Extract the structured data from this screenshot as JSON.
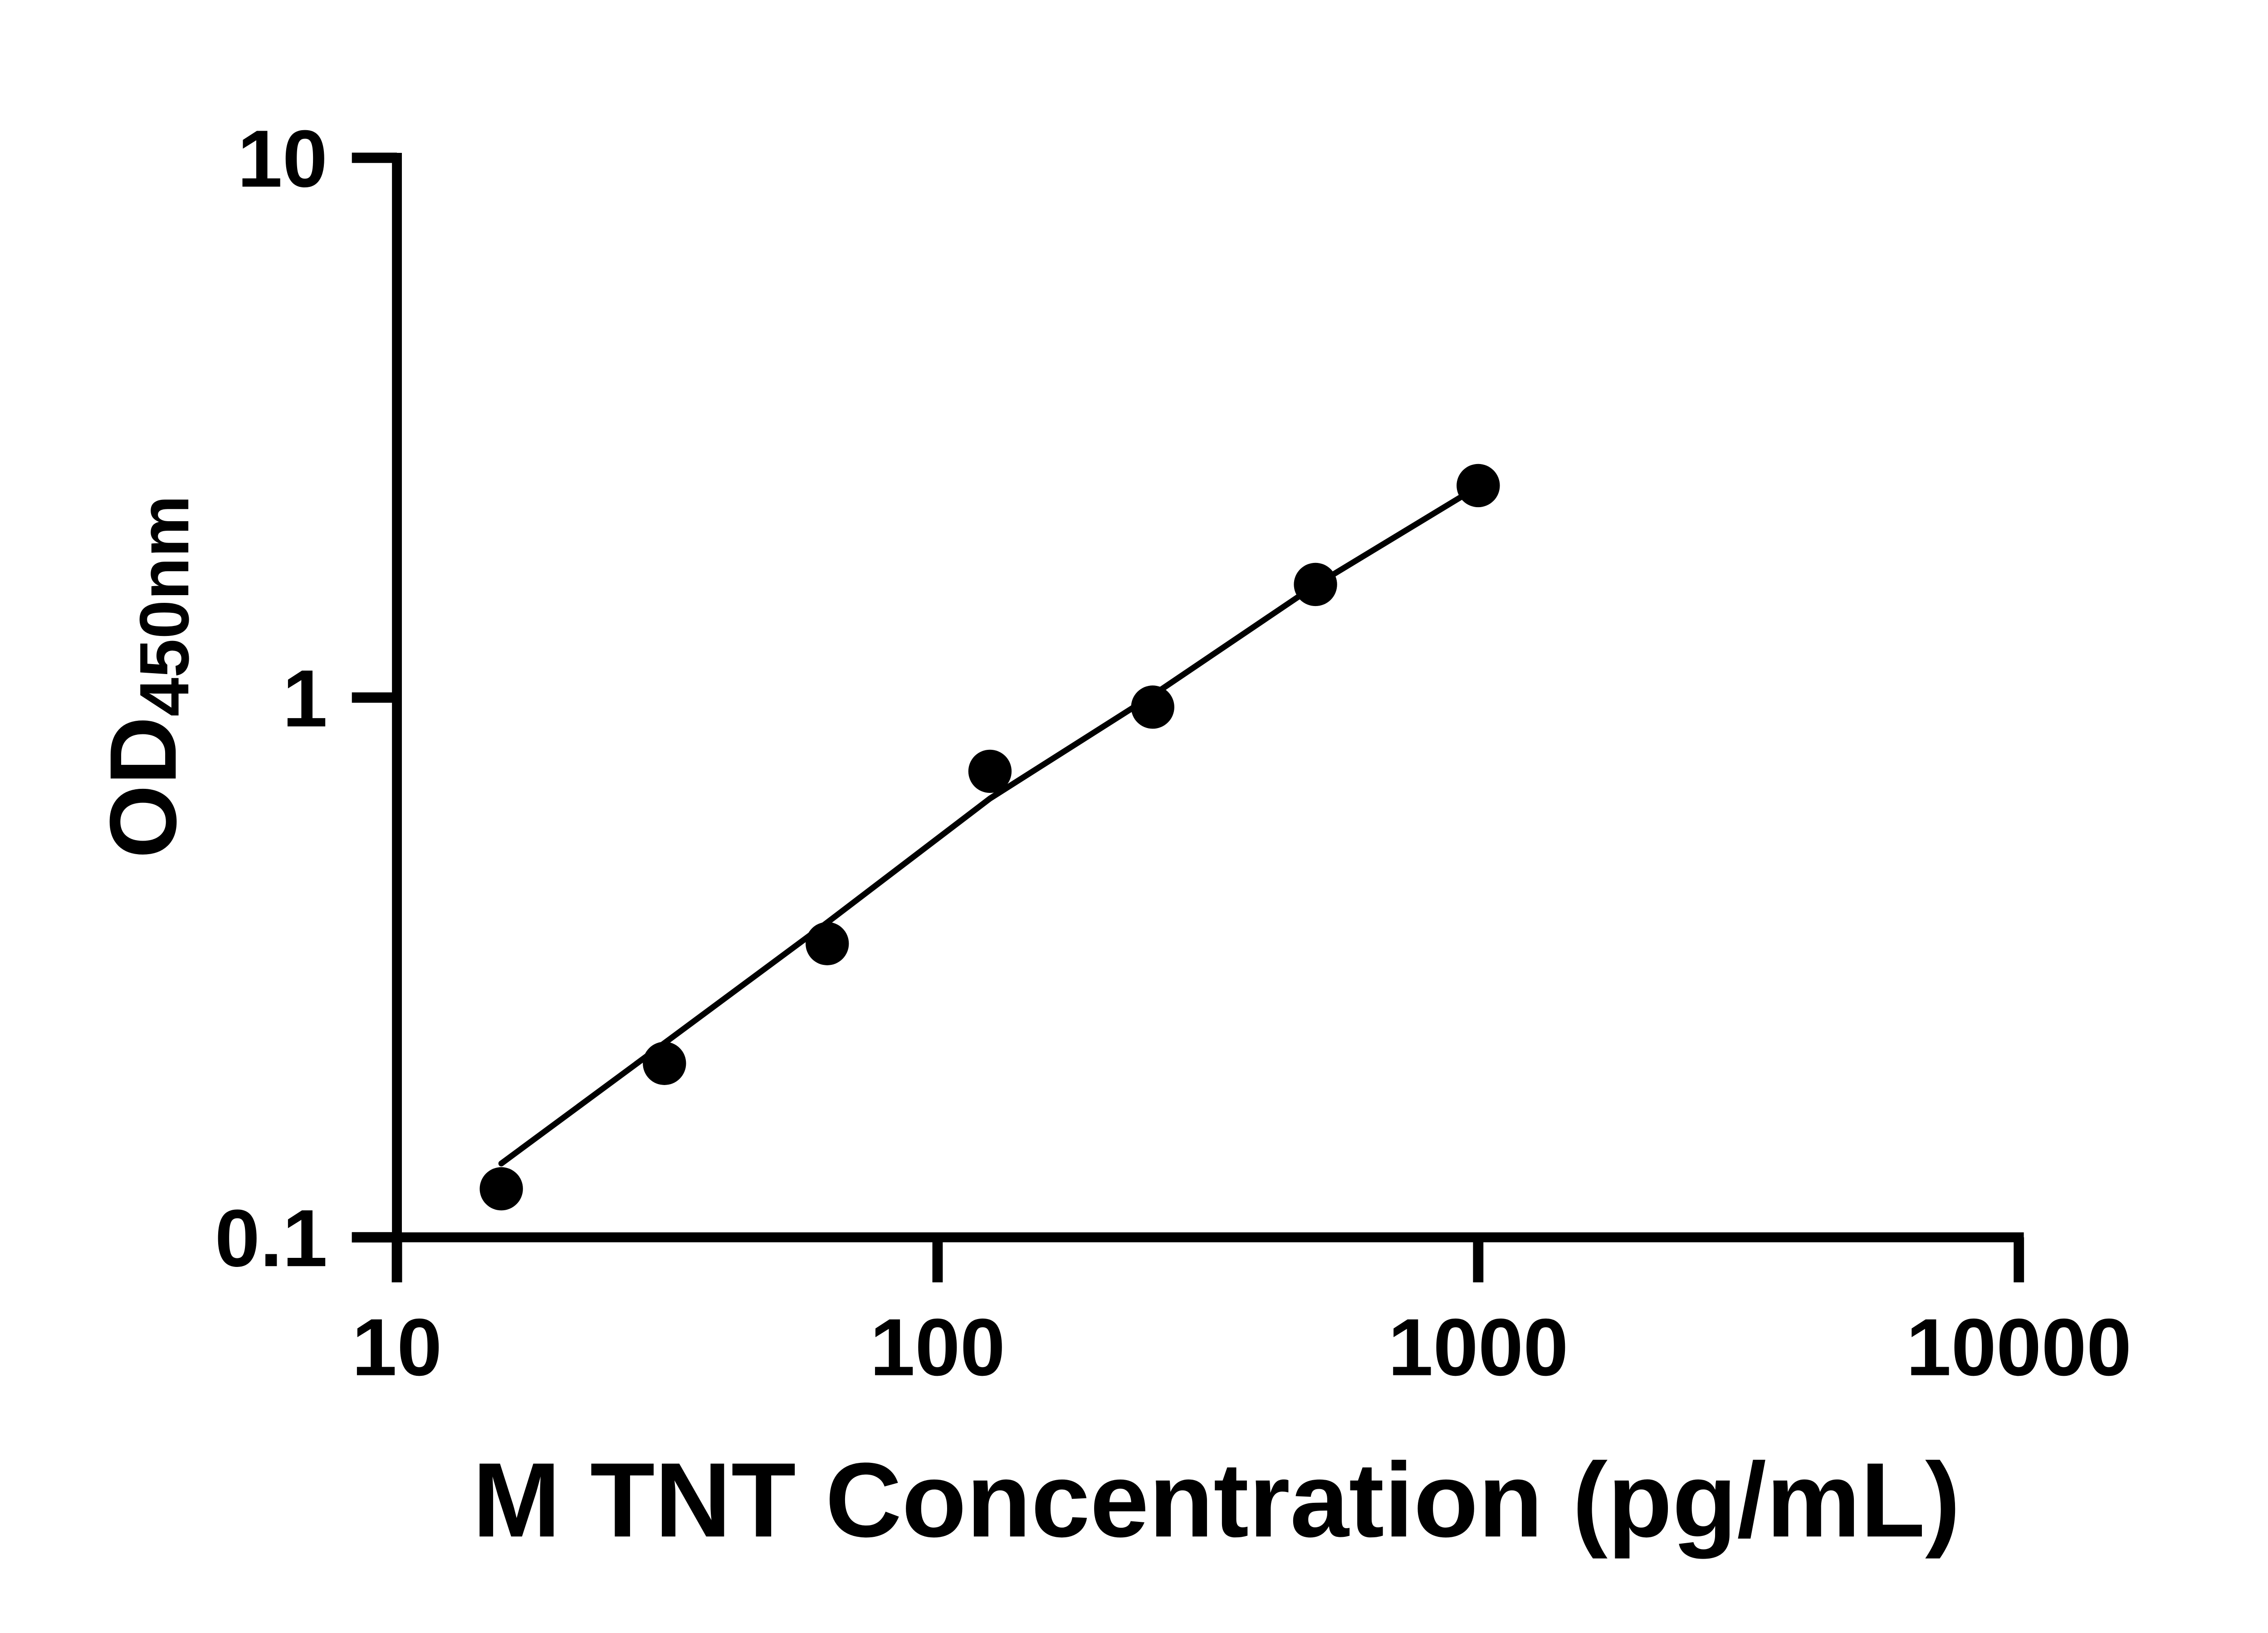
{
  "chart_data": {
    "type": "scatter",
    "title": "",
    "xlabel": "M TNT Concentration (pg/mL)",
    "ylabel_main": "OD",
    "ylabel_sub": "450nm",
    "x_scale": "log10",
    "y_scale": "log10",
    "xlim": [
      10,
      10000
    ],
    "ylim": [
      0.1,
      10
    ],
    "grid": "off",
    "legend": "none",
    "colors": {
      "foreground": "#000000",
      "background": "#ffffff"
    },
    "x_ticks": [
      {
        "value": 10,
        "label": "10"
      },
      {
        "value": 100,
        "label": "100"
      },
      {
        "value": 1000,
        "label": "1000"
      },
      {
        "value": 10000,
        "label": "10000"
      }
    ],
    "y_ticks": [
      {
        "value": 0.1,
        "label": "0.1"
      },
      {
        "value": 1,
        "label": "1"
      },
      {
        "value": 10,
        "label": "10"
      }
    ],
    "series": [
      {
        "name": "standard-points",
        "type": "scatter",
        "marker": "filled-circle",
        "color": "#000000",
        "x": [
          15.6,
          31.25,
          62.5,
          125,
          250,
          500,
          1000
        ],
        "y": [
          0.123,
          0.21,
          0.35,
          0.73,
          0.96,
          1.62,
          2.47
        ]
      },
      {
        "name": "fit-curve",
        "type": "line",
        "color": "#000000",
        "x": [
          15.6,
          31.25,
          62.5,
          125,
          250,
          500,
          1000
        ],
        "y": [
          0.137,
          0.229,
          0.383,
          0.65,
          1.01,
          1.615,
          2.46
        ]
      }
    ]
  }
}
